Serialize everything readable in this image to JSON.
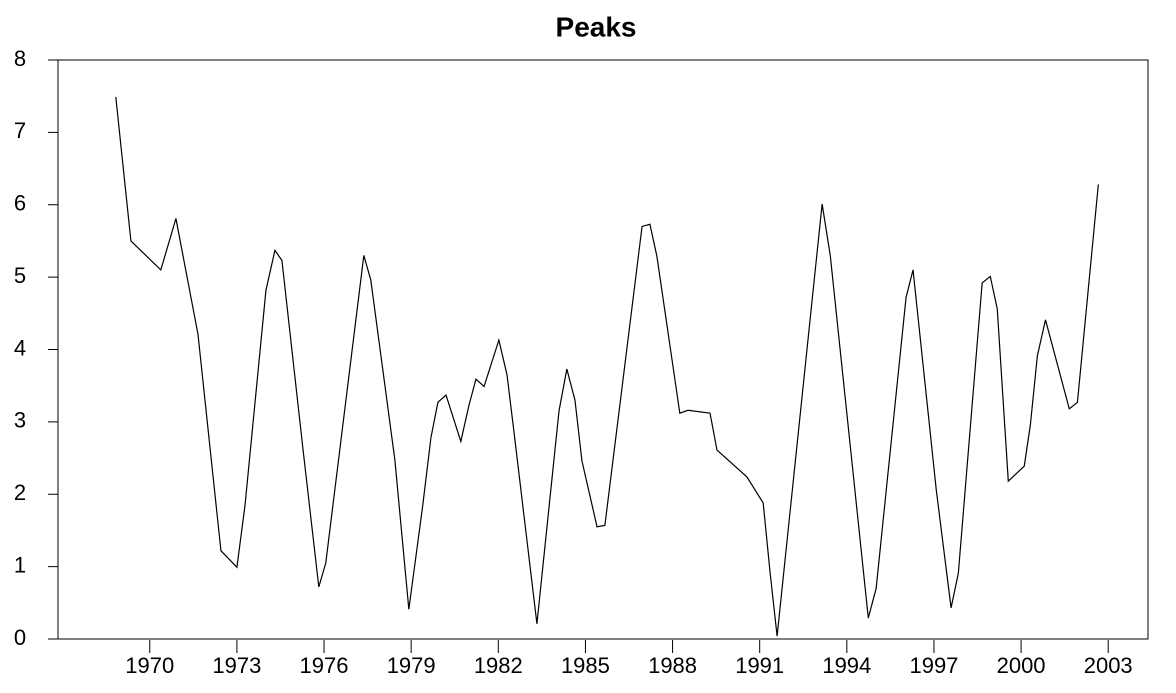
{
  "chart_data": {
    "type": "line",
    "title": "Peaks",
    "x": [
      1968.83,
      1969.35,
      1970.38,
      1970.9,
      1971.66,
      1972.45,
      1973.0,
      1973.28,
      1974.0,
      1974.31,
      1974.55,
      1975.27,
      1975.82,
      1976.06,
      1977.37,
      1977.61,
      1978.44,
      1978.92,
      1979.4,
      1979.68,
      1979.92,
      1980.2,
      1980.71,
      1980.99,
      1981.23,
      1981.51,
      1982.02,
      1982.3,
      1982.54,
      1983.33,
      1984.09,
      1984.36,
      1984.64,
      1984.88,
      1985.4,
      1985.67,
      1986.95,
      1987.22,
      1987.46,
      1988.25,
      1988.53,
      1989.29,
      1989.53,
      1990.56,
      1991.12,
      1991.36,
      1991.6,
      1993.15,
      1993.43,
      1994.74,
      1995.01,
      1996.04,
      1996.28,
      1997.08,
      1997.59,
      1997.84,
      1998.66,
      1998.94,
      1999.18,
      1999.56,
      2000.11,
      2000.32,
      2000.56,
      2000.84,
      2001.66,
      2001.94,
      2002.66
    ],
    "series": [
      {
        "name": "Peaks",
        "color": "#000000",
        "values": [
          7.49,
          5.5,
          5.1,
          5.81,
          4.21,
          1.22,
          0.99,
          1.85,
          4.82,
          5.37,
          5.23,
          2.64,
          0.72,
          1.05,
          5.3,
          4.96,
          2.47,
          0.41,
          1.85,
          2.78,
          3.27,
          3.37,
          2.73,
          3.23,
          3.59,
          3.49,
          4.13,
          3.65,
          2.86,
          0.21,
          3.15,
          3.73,
          3.3,
          2.46,
          1.55,
          1.57,
          5.7,
          5.73,
          5.29,
          3.12,
          3.16,
          3.12,
          2.61,
          2.24,
          1.88,
          0.91,
          0.04,
          6.01,
          5.3,
          0.29,
          0.7,
          4.72,
          5.1,
          2.06,
          0.43,
          0.91,
          4.92,
          5.01,
          4.56,
          2.18,
          2.39,
          2.96,
          3.91,
          4.41,
          3.18,
          3.27,
          6.28
        ]
      }
    ],
    "xlim": [
      1966.84,
      2004.37
    ],
    "xticks": [
      1970,
      1973,
      1976,
      1979,
      1982,
      1985,
      1988,
      1991,
      1994,
      1997,
      2000,
      2003
    ],
    "ylim": [
      0,
      8
    ],
    "yticks": [
      0,
      1,
      2,
      3,
      4,
      5,
      6,
      7,
      8
    ]
  }
}
